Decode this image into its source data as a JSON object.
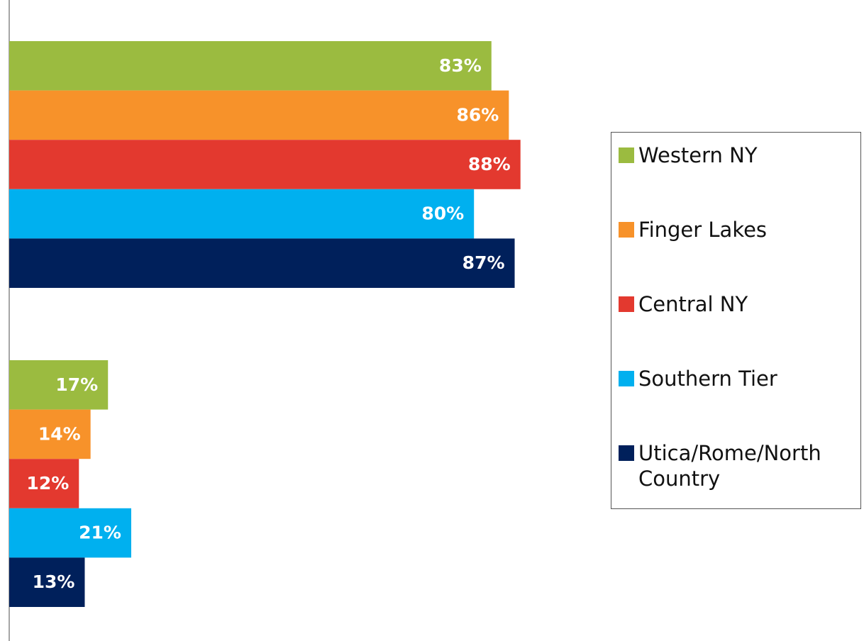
{
  "chart_data": {
    "type": "bar",
    "orientation": "horizontal",
    "categories": [
      null,
      null
    ],
    "xlim": [
      0,
      100
    ],
    "series": [
      {
        "name": "Western NY",
        "color": "#9bbb40",
        "values": [
          83,
          17
        ],
        "value_labels": [
          "83%",
          "17%"
        ]
      },
      {
        "name": "Finger Lakes",
        "color": "#f7922a",
        "values": [
          86,
          14
        ],
        "value_labels": [
          "86%",
          "14%"
        ]
      },
      {
        "name": "Central NY",
        "color": "#e3392f",
        "values": [
          88,
          12
        ],
        "value_labels": [
          "88%",
          "12%"
        ]
      },
      {
        "name": "Southern Tier",
        "color": "#00b0ef",
        "values": [
          80,
          21
        ],
        "value_labels": [
          "80%",
          "21%"
        ]
      },
      {
        "name": "Utica/Rome/North Country",
        "color": "#00205b",
        "values": [
          87,
          13
        ],
        "value_labels": [
          "87%",
          "13%"
        ]
      }
    ],
    "legend": "right"
  }
}
